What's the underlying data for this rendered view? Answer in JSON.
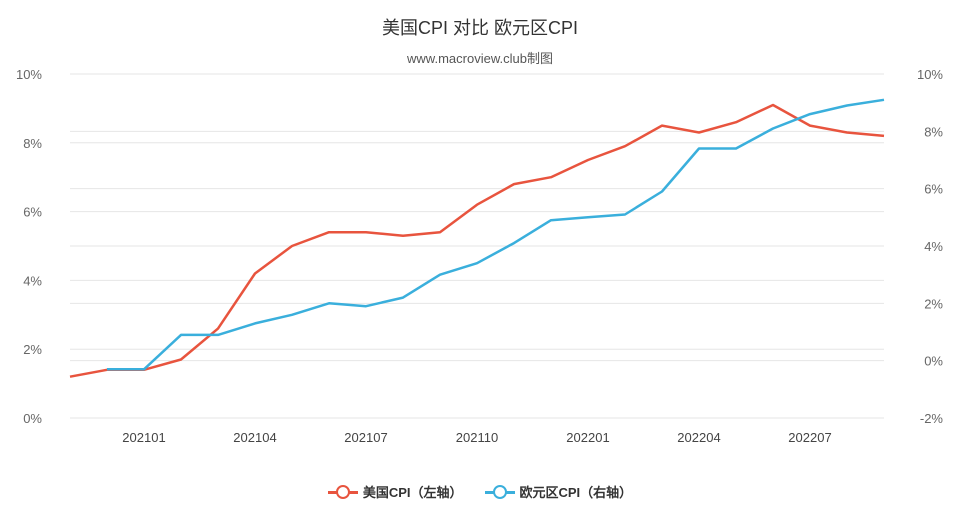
{
  "chart_data": {
    "type": "line",
    "title": "美国CPI 对比 欧元区CPI",
    "subtitle": "www.macroview.club制图",
    "x": [
      "202011",
      "202012",
      "202101",
      "202102",
      "202103",
      "202104",
      "202105",
      "202106",
      "202107",
      "202108",
      "202109",
      "202110",
      "202111",
      "202112",
      "202201",
      "202202",
      "202203",
      "202204",
      "202205",
      "202206",
      "202207",
      "202208",
      "202209"
    ],
    "x_tick_labels": [
      "202101",
      "202104",
      "202107",
      "202110",
      "202201",
      "202204",
      "202207"
    ],
    "y_left": {
      "ticks": [
        "0%",
        "2%",
        "4%",
        "6%",
        "8%",
        "10%"
      ],
      "range": [
        0,
        10
      ]
    },
    "y_right": {
      "ticks": [
        "-2%",
        "0%",
        "2%",
        "4%",
        "6%",
        "8%",
        "10%"
      ],
      "range": [
        -2,
        10
      ]
    },
    "series": [
      {
        "name": "美国CPI（左轴）",
        "axis": "left",
        "color": "#e8543e",
        "values": [
          1.2,
          1.4,
          1.4,
          1.7,
          2.6,
          4.2,
          5.0,
          5.4,
          5.4,
          5.3,
          5.4,
          6.2,
          6.8,
          7.0,
          7.5,
          7.9,
          8.5,
          8.3,
          8.6,
          9.1,
          8.5,
          8.3,
          8.2
        ]
      },
      {
        "name": "欧元区CPI（右轴）",
        "axis": "right",
        "color": "#3aafdc",
        "values": [
          null,
          -0.3,
          -0.3,
          0.9,
          0.9,
          1.3,
          1.6,
          2.0,
          1.9,
          2.2,
          3.0,
          3.4,
          4.1,
          4.9,
          5.0,
          5.1,
          5.9,
          7.4,
          7.4,
          8.1,
          8.6,
          8.9,
          9.1
        ]
      }
    ],
    "grid": true,
    "legend_position": "bottom"
  }
}
